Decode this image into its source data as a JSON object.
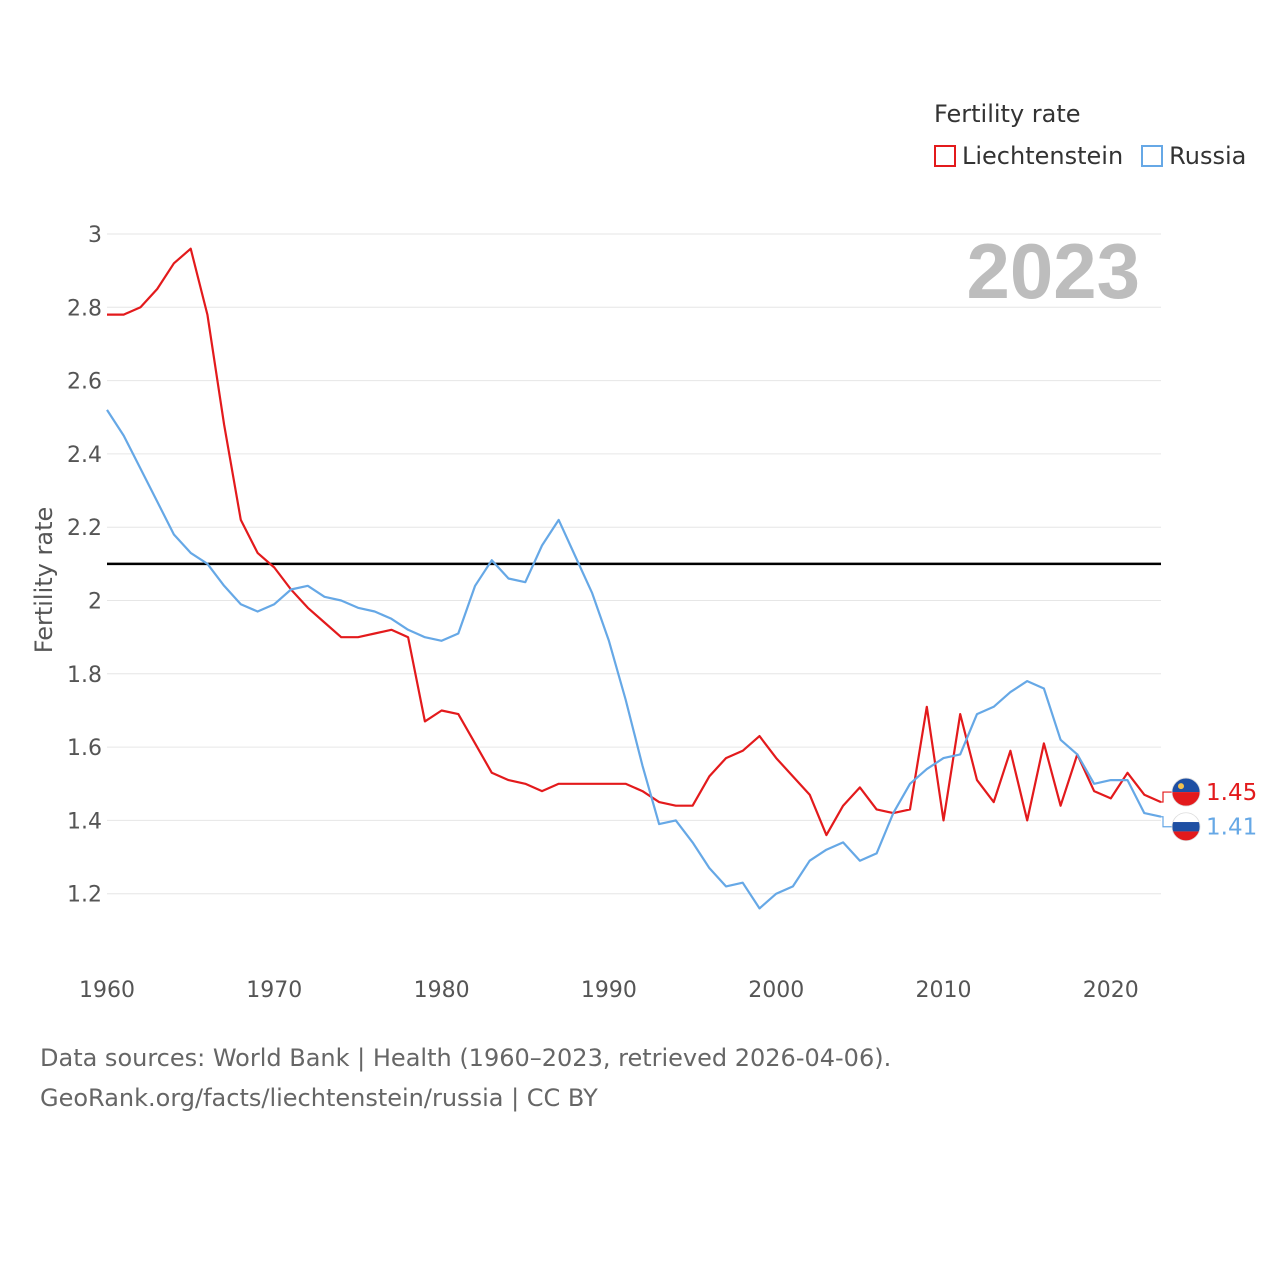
{
  "chart_data": {
    "type": "line",
    "title": "",
    "legend_title": "Fertility rate",
    "ylabel": "Fertility rate",
    "xlabel": "",
    "year_label": "2023",
    "xlim": [
      1960,
      2023
    ],
    "ylim": [
      1.0,
      3.0
    ],
    "x_ticks": [
      1960,
      1970,
      1980,
      1990,
      2000,
      2010,
      2020
    ],
    "y_ticks": [
      1.2,
      1.4,
      1.6,
      1.8,
      2,
      2.2,
      2.4,
      2.6,
      2.8,
      3
    ],
    "reference_line": 2.1,
    "x": [
      1960,
      1961,
      1962,
      1963,
      1964,
      1965,
      1966,
      1967,
      1968,
      1969,
      1970,
      1971,
      1972,
      1973,
      1974,
      1975,
      1976,
      1977,
      1978,
      1979,
      1980,
      1981,
      1982,
      1983,
      1984,
      1985,
      1986,
      1987,
      1988,
      1989,
      1990,
      1991,
      1992,
      1993,
      1994,
      1995,
      1996,
      1997,
      1998,
      1999,
      2000,
      2001,
      2002,
      2003,
      2004,
      2005,
      2006,
      2007,
      2008,
      2009,
      2010,
      2011,
      2012,
      2013,
      2014,
      2015,
      2016,
      2017,
      2018,
      2019,
      2020,
      2021,
      2022,
      2023
    ],
    "series": [
      {
        "name": "Liechtenstein",
        "color": "#e31a1c",
        "end_label": "1.45",
        "values": [
          2.78,
          2.78,
          2.8,
          2.85,
          2.92,
          2.96,
          2.78,
          2.48,
          2.22,
          2.13,
          2.09,
          2.03,
          1.98,
          1.94,
          1.9,
          1.9,
          1.91,
          1.92,
          1.9,
          1.67,
          1.7,
          1.69,
          1.61,
          1.53,
          1.51,
          1.5,
          1.48,
          1.5,
          1.5,
          1.5,
          1.5,
          1.5,
          1.48,
          1.45,
          1.44,
          1.44,
          1.52,
          1.57,
          1.59,
          1.63,
          1.57,
          1.52,
          1.47,
          1.36,
          1.44,
          1.49,
          1.43,
          1.42,
          1.43,
          1.71,
          1.4,
          1.69,
          1.51,
          1.45,
          1.59,
          1.4,
          1.61,
          1.44,
          1.58,
          1.48,
          1.46,
          1.53,
          1.47,
          1.45
        ]
      },
      {
        "name": "Russia",
        "color": "#66a8e6",
        "end_label": "1.41",
        "values": [
          2.52,
          2.45,
          2.36,
          2.27,
          2.18,
          2.13,
          2.1,
          2.04,
          1.99,
          1.97,
          1.99,
          2.03,
          2.04,
          2.01,
          2.0,
          1.98,
          1.97,
          1.95,
          1.92,
          1.9,
          1.89,
          1.91,
          2.04,
          2.11,
          2.06,
          2.05,
          2.15,
          2.22,
          2.12,
          2.02,
          1.89,
          1.73,
          1.55,
          1.39,
          1.4,
          1.34,
          1.27,
          1.22,
          1.23,
          1.16,
          1.2,
          1.22,
          1.29,
          1.32,
          1.34,
          1.29,
          1.31,
          1.42,
          1.5,
          1.54,
          1.57,
          1.58,
          1.69,
          1.71,
          1.75,
          1.78,
          1.76,
          1.62,
          1.58,
          1.5,
          1.51,
          1.51,
          1.42,
          1.41
        ]
      }
    ]
  },
  "footer": {
    "line1": "Data sources: World Bank | Health (1960–2023, retrieved 2026-04-06).",
    "line2": "GeoRank.org/facts/liechtenstein/russia | CC BY"
  }
}
